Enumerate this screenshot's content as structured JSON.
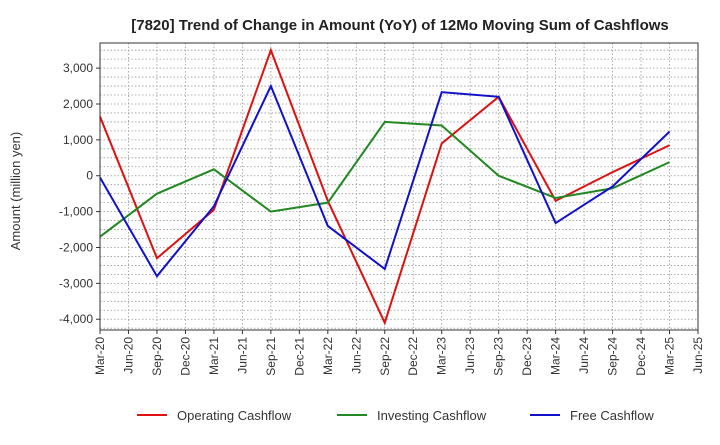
{
  "chart_data": {
    "type": "line",
    "title": "[7820]  Trend of Change in Amount (YoY) of 12Mo Moving Sum of Cashflows",
    "xlabel": "",
    "ylabel": "Amount (million yen)",
    "ylim": [
      -4300,
      3700
    ],
    "yticks": [
      -4000,
      -3000,
      -2000,
      -1000,
      0,
      1000,
      2000,
      3000
    ],
    "ytick_labels": [
      "-4,000",
      "-3,000",
      "-2,000",
      "-1,000",
      "0",
      "1,000",
      "2,000",
      "3,000"
    ],
    "categories": [
      "Mar-20",
      "Jun-20",
      "Sep-20",
      "Dec-20",
      "Mar-21",
      "Jun-21",
      "Sep-21",
      "Dec-21",
      "Mar-22",
      "Jun-22",
      "Sep-22",
      "Dec-22",
      "Mar-23",
      "Jun-23",
      "Sep-23",
      "Dec-23",
      "Mar-24",
      "Jun-24",
      "Sep-24",
      "Dec-24",
      "Mar-25",
      "Jun-25"
    ],
    "grid": true,
    "legend_position": "bottom",
    "series": [
      {
        "name": "Operating Cashflow",
        "color": "#dd1111",
        "points": [
          {
            "x": "Mar-20",
            "y": 1650
          },
          {
            "x": "Sep-20",
            "y": -2300
          },
          {
            "x": "Mar-21",
            "y": -950
          },
          {
            "x": "Sep-21",
            "y": 3500
          },
          {
            "x": "Mar-22",
            "y": -700
          },
          {
            "x": "Sep-22",
            "y": -4100
          },
          {
            "x": "Mar-23",
            "y": 900
          },
          {
            "x": "Sep-23",
            "y": 2200
          },
          {
            "x": "Mar-24",
            "y": -700
          },
          {
            "x": "Sep-24",
            "y": 100
          },
          {
            "x": "Mar-25",
            "y": 850
          }
        ]
      },
      {
        "name": "Investing Cashflow",
        "color": "#228822",
        "points": [
          {
            "x": "Mar-20",
            "y": -1700
          },
          {
            "x": "Sep-20",
            "y": -500
          },
          {
            "x": "Mar-21",
            "y": 180
          },
          {
            "x": "Sep-21",
            "y": -1000
          },
          {
            "x": "Mar-22",
            "y": -750
          },
          {
            "x": "Sep-22",
            "y": 1500
          },
          {
            "x": "Mar-23",
            "y": 1400
          },
          {
            "x": "Sep-23",
            "y": 0
          },
          {
            "x": "Mar-24",
            "y": -620
          },
          {
            "x": "Sep-24",
            "y": -350
          },
          {
            "x": "Mar-25",
            "y": 380
          }
        ]
      },
      {
        "name": "Free Cashflow",
        "color": "#1111cc",
        "points": [
          {
            "x": "Mar-20",
            "y": -50
          },
          {
            "x": "Sep-20",
            "y": -2800
          },
          {
            "x": "Mar-21",
            "y": -850
          },
          {
            "x": "Sep-21",
            "y": 2500
          },
          {
            "x": "Mar-22",
            "y": -1400
          },
          {
            "x": "Sep-22",
            "y": -2600
          },
          {
            "x": "Mar-23",
            "y": 2330
          },
          {
            "x": "Sep-23",
            "y": 2200
          },
          {
            "x": "Mar-24",
            "y": -1320
          },
          {
            "x": "Sep-24",
            "y": -300
          },
          {
            "x": "Mar-25",
            "y": 1230
          }
        ]
      }
    ]
  }
}
